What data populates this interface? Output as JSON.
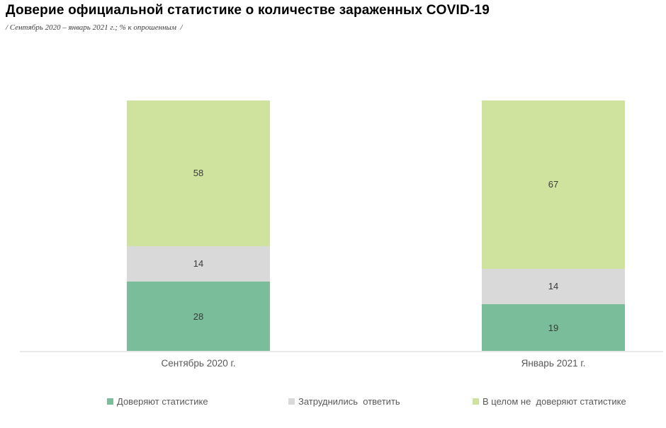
{
  "header": {
    "title": "Доверие официальной статистике о количестве зараженных COVID-19",
    "subtitle": "/ Сентябрь 2020 – январь 2021 г.; % к опрошенным  /"
  },
  "chart_data": {
    "type": "bar",
    "stacked": true,
    "orientation": "vertical",
    "title": "Доверие официальной статистике о количестве зараженных COVID-19",
    "subtitle": "/ Сентябрь 2020 – январь 2021 г.; % к опрошенным /",
    "categories": [
      "Сентябрь 2020 г.",
      "Январь 2021 г."
    ],
    "series": [
      {
        "name": "Доверяют статистике",
        "values": [
          28,
          19
        ],
        "color": "#7abd9a"
      },
      {
        "name": "Затруднились  ответить",
        "values": [
          14,
          14
        ],
        "color": "#d9d9d9"
      },
      {
        "name": "В целом не доверяют статистике",
        "values": [
          58,
          67
        ],
        "color": "#cfe39e"
      }
    ],
    "xlabel": "",
    "ylabel": "",
    "ylim": [
      0,
      100
    ],
    "unit": "% к опрошенным",
    "grid": false,
    "value_labels": true,
    "legend_position": "bottom",
    "axis_line_color": "#e8e8e8",
    "label_color": "#595959"
  },
  "legend": {
    "items": [
      {
        "label": "Доверяют статистике"
      },
      {
        "label": "Затруднились  ответить"
      },
      {
        "label": "В целом не  доверяют статистике"
      }
    ]
  }
}
